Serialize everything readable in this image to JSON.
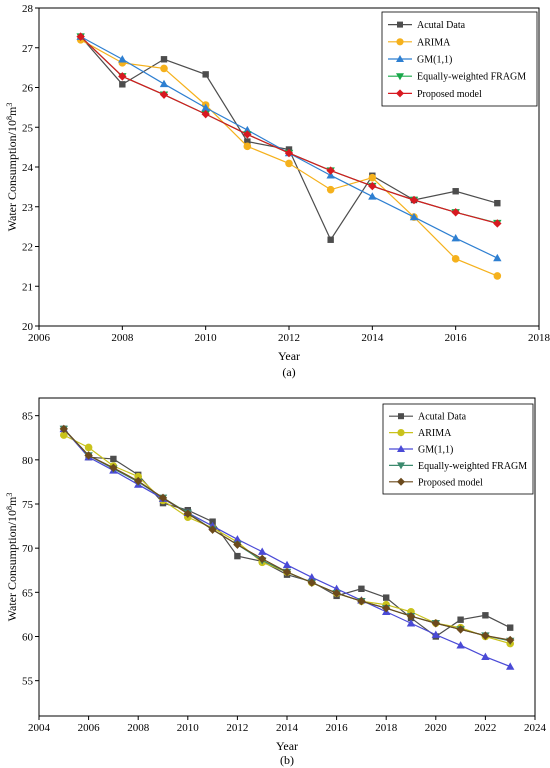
{
  "chart_data": [
    {
      "type": "line",
      "caption": "(a)",
      "xlabel": "Year",
      "ylabel_main": "Water Consumption/10",
      "ylabel_sup": "8",
      "ylabel_unit": "m",
      "ylabel_unit_sup": "3",
      "xlim": [
        2006,
        2018
      ],
      "ylim": [
        20,
        28
      ],
      "xticks": [
        2006,
        2008,
        2010,
        2012,
        2014,
        2016,
        2018
      ],
      "yticks": [
        20,
        21,
        22,
        23,
        24,
        25,
        26,
        27,
        28
      ],
      "legend_position": "top-right",
      "series": [
        {
          "name": "Acutal Data",
          "color": "#4d4d4d",
          "marker": "square",
          "x": [
            2007,
            2008,
            2009,
            2010,
            2011,
            2012,
            2013,
            2014,
            2015,
            2016,
            2017
          ],
          "y": [
            27.28,
            26.08,
            26.71,
            26.33,
            24.64,
            24.44,
            22.17,
            23.78,
            23.17,
            23.39,
            23.09
          ]
        },
        {
          "name": "ARIMA",
          "color": "#f5b11c",
          "marker": "circle",
          "x": [
            2007,
            2008,
            2009,
            2010,
            2011,
            2012,
            2013,
            2014,
            2015,
            2016,
            2017
          ],
          "y": [
            27.2,
            26.62,
            26.48,
            25.56,
            24.52,
            24.09,
            23.43,
            23.73,
            22.74,
            21.69,
            21.26
          ]
        },
        {
          "name": "GM(1,1)",
          "color": "#2e7fd1",
          "marker": "triangle-up",
          "x": [
            2007,
            2008,
            2009,
            2010,
            2011,
            2012,
            2013,
            2014,
            2015,
            2016,
            2017
          ],
          "y": [
            27.28,
            26.71,
            26.09,
            25.49,
            24.93,
            24.35,
            23.79,
            23.26,
            22.74,
            22.21,
            21.71
          ]
        },
        {
          "name": "Equally-weighted FRAGM",
          "color": "#1aa84a",
          "marker": "triangle-down",
          "x": [
            2007,
            2008,
            2009,
            2010,
            2011,
            2012,
            2013,
            2014,
            2015,
            2016,
            2017
          ],
          "y": [
            27.28,
            26.28,
            25.82,
            25.33,
            24.82,
            24.35,
            23.91,
            23.52,
            23.17,
            22.86,
            22.59
          ]
        },
        {
          "name": "Proposed model",
          "color": "#d71920",
          "marker": "diamond",
          "x": [
            2007,
            2008,
            2009,
            2010,
            2011,
            2012,
            2013,
            2014,
            2015,
            2016,
            2017
          ],
          "y": [
            27.28,
            26.28,
            25.82,
            25.33,
            24.82,
            24.35,
            23.91,
            23.52,
            23.17,
            22.86,
            22.58
          ]
        }
      ]
    },
    {
      "type": "line",
      "caption": "(b)",
      "xlabel": "Year",
      "ylabel_main": "Water Consumption/10",
      "ylabel_sup": "8",
      "ylabel_unit": "m",
      "ylabel_unit_sup": "3",
      "xlim": [
        2004,
        2024
      ],
      "ylim": [
        51,
        87
      ],
      "xticks": [
        2004,
        2006,
        2008,
        2010,
        2012,
        2014,
        2016,
        2018,
        2020,
        2022,
        2024
      ],
      "yticks": [
        55,
        60,
        65,
        70,
        75,
        80,
        85
      ],
      "legend_position": "top-right",
      "series": [
        {
          "name": "Acutal Data",
          "color": "#4d4d4d",
          "marker": "square",
          "x": [
            2005,
            2006,
            2007,
            2008,
            2009,
            2010,
            2011,
            2012,
            2013,
            2014,
            2015,
            2016,
            2017,
            2018,
            2019,
            2020,
            2021,
            2022,
            2023
          ],
          "y": [
            83.5,
            80.3,
            80.1,
            78.3,
            75.1,
            74.3,
            73.0,
            69.1,
            68.5,
            67.0,
            66.2,
            64.6,
            65.4,
            64.4,
            62.1,
            60.0,
            61.9,
            62.4,
            61.0
          ]
        },
        {
          "name": "ARIMA",
          "color": "#c9c21c",
          "marker": "circle",
          "x": [
            2005,
            2006,
            2007,
            2008,
            2009,
            2010,
            2011,
            2012,
            2013,
            2014,
            2015,
            2016,
            2017,
            2018,
            2019,
            2020,
            2021,
            2022,
            2023
          ],
          "y": [
            82.8,
            81.4,
            79.3,
            78.1,
            75.4,
            73.5,
            72.3,
            70.7,
            68.4,
            67.3,
            66.1,
            64.9,
            64.0,
            63.6,
            62.8,
            61.5,
            61.0,
            60.0,
            59.2
          ]
        },
        {
          "name": "GM(1,1)",
          "color": "#4a4ad6",
          "marker": "triangle-up",
          "x": [
            2005,
            2006,
            2007,
            2008,
            2009,
            2010,
            2011,
            2012,
            2013,
            2014,
            2015,
            2016,
            2017,
            2018,
            2019,
            2020,
            2021,
            2022,
            2023
          ],
          "y": [
            83.5,
            80.3,
            78.8,
            77.2,
            75.6,
            74.0,
            72.5,
            71.0,
            69.6,
            68.1,
            66.7,
            65.4,
            64.1,
            62.8,
            61.5,
            60.2,
            59.0,
            57.7,
            56.6
          ]
        },
        {
          "name": "Equally-weighted FRAGM",
          "color": "#3c8a6e",
          "marker": "triangle-down",
          "x": [
            2005,
            2006,
            2007,
            2008,
            2009,
            2010,
            2011,
            2012,
            2013,
            2014,
            2015,
            2016,
            2017,
            2018,
            2019,
            2020,
            2021,
            2022,
            2023
          ],
          "y": [
            83.5,
            80.5,
            79.0,
            77.5,
            75.7,
            74.0,
            72.1,
            70.4,
            68.6,
            67.3,
            66.1,
            64.9,
            64.0,
            63.2,
            62.3,
            61.5,
            60.8,
            60.1,
            59.5
          ]
        },
        {
          "name": "Proposed model",
          "color": "#6b4a1c",
          "marker": "diamond",
          "x": [
            2005,
            2006,
            2007,
            2008,
            2009,
            2010,
            2011,
            2012,
            2013,
            2014,
            2015,
            2016,
            2017,
            2018,
            2019,
            2020,
            2021,
            2022,
            2023
          ],
          "y": [
            83.5,
            80.5,
            79.1,
            77.6,
            75.7,
            73.9,
            72.1,
            70.4,
            68.8,
            67.3,
            66.1,
            64.9,
            64.0,
            63.2,
            62.3,
            61.5,
            60.8,
            60.1,
            59.6
          ]
        }
      ]
    }
  ]
}
